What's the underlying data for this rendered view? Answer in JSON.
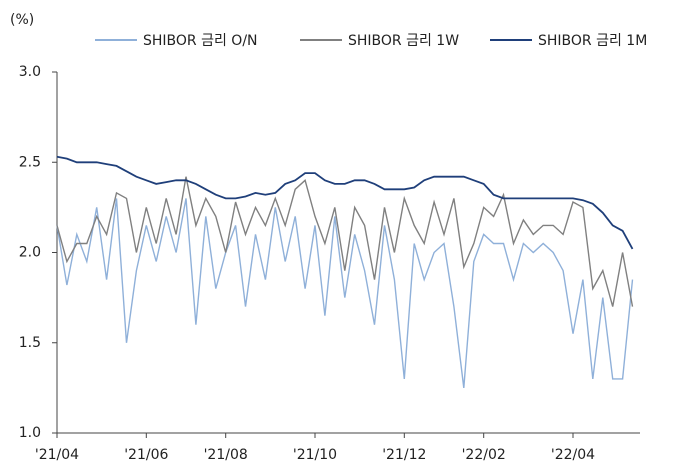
{
  "chart_data": {
    "type": "line",
    "y_label": "(%)",
    "categories": [
      "'21/04",
      null,
      null,
      null,
      null,
      null,
      null,
      null,
      null,
      "'21/06",
      null,
      null,
      null,
      null,
      null,
      null,
      null,
      "'21/08",
      null,
      null,
      null,
      null,
      null,
      null,
      null,
      null,
      "'21/10",
      null,
      null,
      null,
      null,
      null,
      null,
      null,
      null,
      "'21/12",
      null,
      null,
      null,
      null,
      null,
      null,
      null,
      "'22/02",
      null,
      null,
      null,
      null,
      null,
      null,
      null,
      null,
      "'22/04",
      null,
      null,
      null,
      null,
      null,
      null
    ],
    "series": [
      {
        "name": "SHIBOR 금리 O/N",
        "color": "#8fb0d9",
        "values": [
          2.15,
          1.82,
          2.1,
          1.95,
          2.25,
          1.85,
          2.3,
          1.5,
          1.9,
          2.15,
          1.95,
          2.2,
          2.0,
          2.3,
          1.6,
          2.2,
          1.8,
          2.0,
          2.15,
          1.7,
          2.1,
          1.85,
          2.25,
          1.95,
          2.2,
          1.8,
          2.15,
          1.65,
          2.2,
          1.75,
          2.1,
          1.9,
          1.6,
          2.15,
          1.85,
          1.3,
          2.05,
          1.85,
          2.0,
          2.05,
          1.7,
          1.25,
          1.95,
          2.1,
          2.05,
          2.05,
          1.85,
          2.05,
          2.0,
          2.05,
          2.0,
          1.9,
          1.55,
          1.85,
          1.3,
          1.75,
          1.3,
          1.3,
          1.85
        ]
      },
      {
        "name": "SHIBOR 금리 1W",
        "color": "#808080",
        "values": [
          2.15,
          1.95,
          2.05,
          2.05,
          2.2,
          2.1,
          2.33,
          2.3,
          2.0,
          2.25,
          2.05,
          2.3,
          2.1,
          2.42,
          2.15,
          2.3,
          2.2,
          2.0,
          2.28,
          2.1,
          2.25,
          2.15,
          2.3,
          2.15,
          2.35,
          2.4,
          2.2,
          2.05,
          2.25,
          1.9,
          2.25,
          2.15,
          1.85,
          2.25,
          2.0,
          2.3,
          2.15,
          2.05,
          2.28,
          2.1,
          2.3,
          1.92,
          2.05,
          2.25,
          2.2,
          2.32,
          2.05,
          2.18,
          2.1,
          2.15,
          2.15,
          2.1,
          2.28,
          2.25,
          1.8,
          1.9,
          1.7,
          2.0,
          1.7
        ]
      },
      {
        "name": "SHIBOR 금리 1M",
        "color": "#1f3f7a",
        "values": [
          2.53,
          2.52,
          2.5,
          2.5,
          2.5,
          2.49,
          2.48,
          2.45,
          2.42,
          2.4,
          2.38,
          2.39,
          2.4,
          2.4,
          2.38,
          2.35,
          2.32,
          2.3,
          2.3,
          2.31,
          2.33,
          2.32,
          2.33,
          2.38,
          2.4,
          2.44,
          2.44,
          2.4,
          2.38,
          2.38,
          2.4,
          2.4,
          2.38,
          2.35,
          2.35,
          2.35,
          2.36,
          2.4,
          2.42,
          2.42,
          2.42,
          2.42,
          2.4,
          2.38,
          2.32,
          2.3,
          2.3,
          2.3,
          2.3,
          2.3,
          2.3,
          2.3,
          2.3,
          2.29,
          2.27,
          2.22,
          2.15,
          2.12,
          2.02
        ]
      }
    ],
    "ylim": [
      1,
      3
    ],
    "yticks": [
      {
        "value": 1,
        "label": "1.0"
      },
      1.5,
      {
        "value": 2,
        "label": "2.0"
      },
      2.5,
      {
        "value": 3,
        "label": "3.0"
      }
    ],
    "grid": false,
    "legend": "top"
  }
}
